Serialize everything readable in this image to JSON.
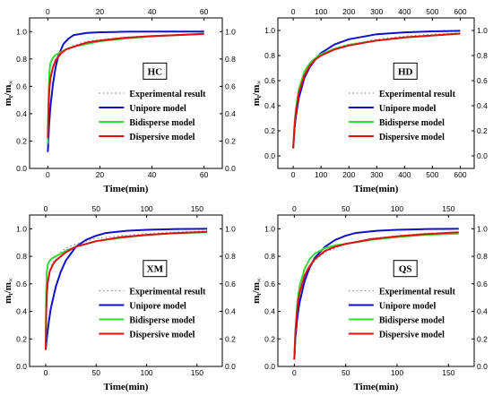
{
  "chart_data": [
    {
      "type": "line",
      "panel_label": "HC",
      "xlabel": "Time(min)",
      "ylabel": "m",
      "ylabel_sub": "t",
      "ylabel_sep": "/m",
      "ylabel_sub2": "∞",
      "xlim": [
        -7,
        67
      ],
      "ylim": [
        0,
        1.1
      ],
      "xticks": [
        0,
        20,
        40,
        60
      ],
      "yticks": [
        0.0,
        0.2,
        0.4,
        0.6,
        0.8,
        1.0
      ],
      "grid": false,
      "legend_position": "center-right",
      "series": [
        {
          "name": "Experimental result",
          "color": "#9a8aa6",
          "x": [
            0,
            0.3,
            1,
            2,
            3,
            5,
            7,
            10,
            15,
            20,
            25,
            30,
            40,
            50,
            60
          ],
          "y": [
            0.2,
            0.5,
            0.68,
            0.75,
            0.8,
            0.85,
            0.87,
            0.9,
            0.93,
            0.94,
            0.95,
            0.96,
            0.97,
            0.975,
            0.98
          ]
        },
        {
          "name": "Unipore model",
          "color": "#1010cc",
          "x": [
            0,
            0.5,
            1,
            2,
            3,
            4,
            6,
            8,
            10,
            15,
            20,
            30,
            40,
            50,
            60
          ],
          "y": [
            0.12,
            0.32,
            0.45,
            0.62,
            0.74,
            0.82,
            0.91,
            0.95,
            0.975,
            0.99,
            0.995,
            0.999,
            1.0,
            1.0,
            1.0
          ]
        },
        {
          "name": "Bidisperse model",
          "color": "#33dd33",
          "x": [
            0,
            0.3,
            0.6,
            1,
            2,
            3,
            5,
            7,
            10,
            15,
            20,
            30,
            40,
            50,
            60
          ],
          "y": [
            0.18,
            0.55,
            0.7,
            0.77,
            0.81,
            0.83,
            0.85,
            0.87,
            0.89,
            0.91,
            0.93,
            0.95,
            0.965,
            0.975,
            0.985
          ]
        },
        {
          "name": "Dispersive model",
          "color": "#dd1111",
          "x": [
            0,
            0.3,
            0.6,
            1,
            2,
            3,
            5,
            7,
            10,
            15,
            20,
            30,
            40,
            50,
            60
          ],
          "y": [
            0.22,
            0.45,
            0.58,
            0.66,
            0.74,
            0.79,
            0.84,
            0.87,
            0.89,
            0.92,
            0.935,
            0.955,
            0.967,
            0.975,
            0.983
          ]
        }
      ]
    },
    {
      "type": "line",
      "panel_label": "HD",
      "xlabel": "Time(min)",
      "ylabel": "m",
      "ylabel_sub": "t",
      "ylabel_sep": "/m",
      "ylabel_sub2": "∞",
      "xlim": [
        -55,
        650
      ],
      "ylim": [
        -0.1,
        1.1
      ],
      "xticks": [
        0,
        100,
        200,
        300,
        400,
        500,
        600
      ],
      "yticks": [
        0.0,
        0.2,
        0.4,
        0.6,
        0.8,
        1.0
      ],
      "grid": false,
      "legend_position": "center-right",
      "series": [
        {
          "name": "Experimental result",
          "color": "#9a8aa6",
          "x": [
            0,
            5,
            10,
            20,
            40,
            60,
            80,
            100,
            150,
            200,
            300,
            400,
            500,
            600
          ],
          "y": [
            0.06,
            0.25,
            0.36,
            0.5,
            0.64,
            0.72,
            0.77,
            0.81,
            0.86,
            0.89,
            0.93,
            0.955,
            0.97,
            0.98
          ]
        },
        {
          "name": "Unipore model",
          "color": "#1010cc",
          "x": [
            0,
            5,
            10,
            20,
            40,
            60,
            80,
            100,
            150,
            200,
            300,
            400,
            500,
            600
          ],
          "y": [
            0.06,
            0.22,
            0.32,
            0.46,
            0.62,
            0.71,
            0.77,
            0.82,
            0.89,
            0.93,
            0.97,
            0.985,
            0.993,
            0.997
          ]
        },
        {
          "name": "Bidisperse model",
          "color": "#33dd33",
          "x": [
            0,
            5,
            10,
            20,
            40,
            60,
            80,
            100,
            150,
            200,
            300,
            400,
            500,
            600
          ],
          "y": [
            0.06,
            0.26,
            0.38,
            0.53,
            0.67,
            0.74,
            0.78,
            0.81,
            0.855,
            0.885,
            0.92,
            0.945,
            0.96,
            0.975
          ]
        },
        {
          "name": "Dispersive model",
          "color": "#dd1111",
          "x": [
            0,
            5,
            10,
            20,
            40,
            60,
            80,
            100,
            150,
            200,
            300,
            400,
            500,
            600
          ],
          "y": [
            0.06,
            0.24,
            0.35,
            0.5,
            0.64,
            0.72,
            0.77,
            0.8,
            0.85,
            0.88,
            0.92,
            0.945,
            0.96,
            0.975
          ]
        }
      ]
    },
    {
      "type": "line",
      "panel_label": "XM",
      "xlabel": "Time(min)",
      "ylabel": "m",
      "ylabel_sub": "t",
      "ylabel_sep": "/m",
      "ylabel_sub2": "∞",
      "xlim": [
        -16,
        175
      ],
      "ylim": [
        0,
        1.1
      ],
      "xticks": [
        0,
        50,
        100,
        150
      ],
      "yticks": [
        0.0,
        0.2,
        0.4,
        0.6,
        0.8,
        1.0
      ],
      "grid": false,
      "legend_position": "center-right",
      "series": [
        {
          "name": "Experimental result",
          "color": "#9a8aa6",
          "x": [
            0,
            1,
            3,
            5,
            10,
            20,
            30,
            50,
            75,
            100,
            125,
            160
          ],
          "y": [
            0.12,
            0.5,
            0.65,
            0.72,
            0.8,
            0.86,
            0.89,
            0.93,
            0.95,
            0.965,
            0.975,
            0.985
          ]
        },
        {
          "name": "Unipore model",
          "color": "#1010cc",
          "x": [
            0,
            1,
            3,
            5,
            10,
            15,
            20,
            30,
            40,
            50,
            60,
            80,
            100,
            130,
            160
          ],
          "y": [
            0.12,
            0.2,
            0.32,
            0.42,
            0.58,
            0.69,
            0.77,
            0.87,
            0.92,
            0.95,
            0.97,
            0.985,
            0.993,
            0.998,
            1.0
          ]
        },
        {
          "name": "Bidisperse model",
          "color": "#33dd33",
          "x": [
            0,
            0.5,
            1,
            2,
            4,
            7,
            10,
            20,
            30,
            50,
            75,
            100,
            125,
            160
          ],
          "y": [
            0.12,
            0.55,
            0.68,
            0.74,
            0.77,
            0.79,
            0.8,
            0.84,
            0.87,
            0.91,
            0.935,
            0.955,
            0.967,
            0.975
          ]
        },
        {
          "name": "Dispersive model",
          "color": "#dd1111",
          "x": [
            0,
            0.5,
            1,
            2,
            4,
            7,
            10,
            20,
            30,
            50,
            75,
            100,
            125,
            160
          ],
          "y": [
            0.12,
            0.4,
            0.52,
            0.61,
            0.69,
            0.74,
            0.77,
            0.83,
            0.87,
            0.91,
            0.94,
            0.955,
            0.967,
            0.978
          ]
        }
      ]
    },
    {
      "type": "line",
      "panel_label": "QS",
      "xlabel": "Time(min)",
      "ylabel": "m",
      "ylabel_sub": "t",
      "ylabel_sep": "/m",
      "ylabel_sub2": "∞",
      "xlim": [
        -16,
        175
      ],
      "ylim": [
        0,
        1.1
      ],
      "xticks": [
        0,
        50,
        100,
        150
      ],
      "yticks": [
        0.0,
        0.2,
        0.4,
        0.6,
        0.8,
        1.0
      ],
      "grid": false,
      "legend_position": "center-right",
      "series": [
        {
          "name": "Experimental result",
          "color": "#9a8aa6",
          "x": [
            0,
            1,
            3,
            5,
            10,
            20,
            30,
            50,
            75,
            100,
            125,
            160
          ],
          "y": [
            0.05,
            0.25,
            0.42,
            0.52,
            0.65,
            0.77,
            0.83,
            0.89,
            0.93,
            0.95,
            0.965,
            0.975
          ]
        },
        {
          "name": "Unipore model",
          "color": "#1010cc",
          "x": [
            0,
            1,
            3,
            5,
            10,
            15,
            20,
            30,
            40,
            50,
            60,
            80,
            100,
            130,
            160
          ],
          "y": [
            0.05,
            0.2,
            0.36,
            0.46,
            0.62,
            0.72,
            0.79,
            0.87,
            0.92,
            0.95,
            0.97,
            0.985,
            0.993,
            0.998,
            1.0
          ]
        },
        {
          "name": "Bidisperse model",
          "color": "#33dd33",
          "x": [
            0,
            1,
            3,
            5,
            10,
            15,
            20,
            30,
            40,
            50,
            75,
            100,
            125,
            160
          ],
          "y": [
            0.05,
            0.25,
            0.47,
            0.58,
            0.71,
            0.78,
            0.82,
            0.86,
            0.88,
            0.89,
            0.92,
            0.94,
            0.955,
            0.965
          ]
        },
        {
          "name": "Dispersive model",
          "color": "#dd1111",
          "x": [
            0,
            1,
            3,
            5,
            10,
            15,
            20,
            30,
            40,
            50,
            75,
            100,
            125,
            160
          ],
          "y": [
            0.05,
            0.24,
            0.43,
            0.53,
            0.66,
            0.73,
            0.78,
            0.84,
            0.87,
            0.89,
            0.925,
            0.945,
            0.96,
            0.975
          ]
        }
      ]
    }
  ]
}
